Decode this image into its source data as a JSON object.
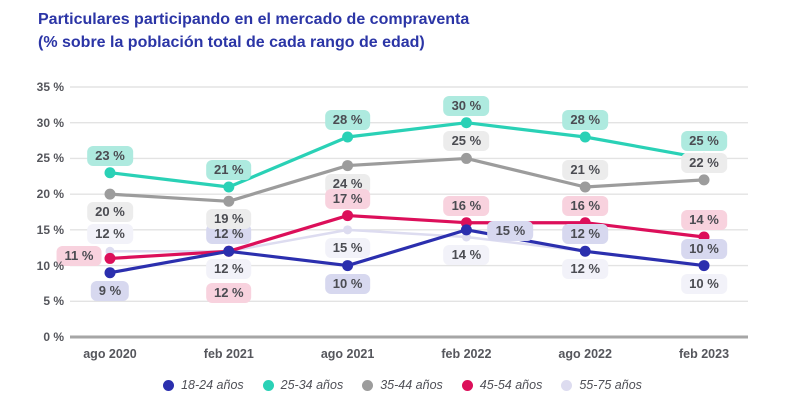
{
  "title": "Particulares participando en el mercado de compraventa",
  "subtitle": "(% sobre la población total de cada rango de edad)",
  "colors": {
    "title_text": "#2b35a6",
    "axis_text": "#55565c",
    "gridline": "#e3e3e3",
    "baseline": "#a6a6a6",
    "chip_text": "#4b4c52"
  },
  "chart_data": {
    "type": "line",
    "title": "Particulares participando en el mercado de compraventa",
    "subtitle": "(% sobre la población total de cada rango de edad)",
    "categories": [
      "ago 2020",
      "feb 2021",
      "ago 2021",
      "feb 2022",
      "ago 2022",
      "feb 2023"
    ],
    "ylim": [
      0,
      35
    ],
    "ytick_step": 5,
    "ytick_suffix": " %",
    "grid": true,
    "legend_position": "bottom",
    "series": [
      {
        "name": "18-24 años",
        "color": "#2b2fae",
        "chip_bg": "#d7d8ef",
        "values": [
          9,
          12,
          10,
          15,
          12,
          10
        ],
        "labels": [
          "9 %",
          "12 %",
          "10 %",
          "15 %",
          "12 %",
          "10 %"
        ],
        "label_placement": [
          "below",
          "above",
          "below",
          "right",
          "above",
          "above"
        ]
      },
      {
        "name": "25-34 años",
        "color": "#2ad1b6",
        "chip_bg": "#aeeadf",
        "values": [
          23,
          21,
          28,
          30,
          28,
          25
        ],
        "labels": [
          "23 %",
          "21 %",
          "28 %",
          "30 %",
          "28 %",
          "25 %"
        ],
        "label_placement": [
          "above",
          "above",
          "above",
          "above",
          "above",
          "above"
        ]
      },
      {
        "name": "35-44 años",
        "color": "#9c9c9c",
        "chip_bg": "#ececec",
        "values": [
          20,
          19,
          24,
          25,
          21,
          22
        ],
        "labels": [
          "20 %",
          "19 %",
          "24 %",
          "25 %",
          "21 %",
          "22 %"
        ],
        "label_placement": [
          "below",
          "below",
          "below",
          "above",
          "above",
          "above"
        ]
      },
      {
        "name": "45-54 años",
        "color": "#dc0f5a",
        "chip_bg": "#f8d2de",
        "values": [
          11,
          12,
          17,
          16,
          16,
          14
        ],
        "labels": [
          "11 %",
          "12 %",
          "17 %",
          "16 %",
          "16 %",
          "14 %"
        ],
        "label_placement": [
          "left",
          "below2",
          "above",
          "above",
          "above",
          "above"
        ]
      },
      {
        "name": "55-75 años",
        "color": "#dddcf0",
        "chip_bg": "#f2f2f9",
        "values": [
          12,
          12,
          15,
          14,
          12,
          10
        ],
        "labels": [
          "12 %",
          "12 %",
          "15 %",
          "14 %",
          "12 %",
          "10 %"
        ],
        "label_placement": [
          "above",
          "below",
          "below",
          "below",
          "below",
          "below"
        ]
      }
    ]
  }
}
